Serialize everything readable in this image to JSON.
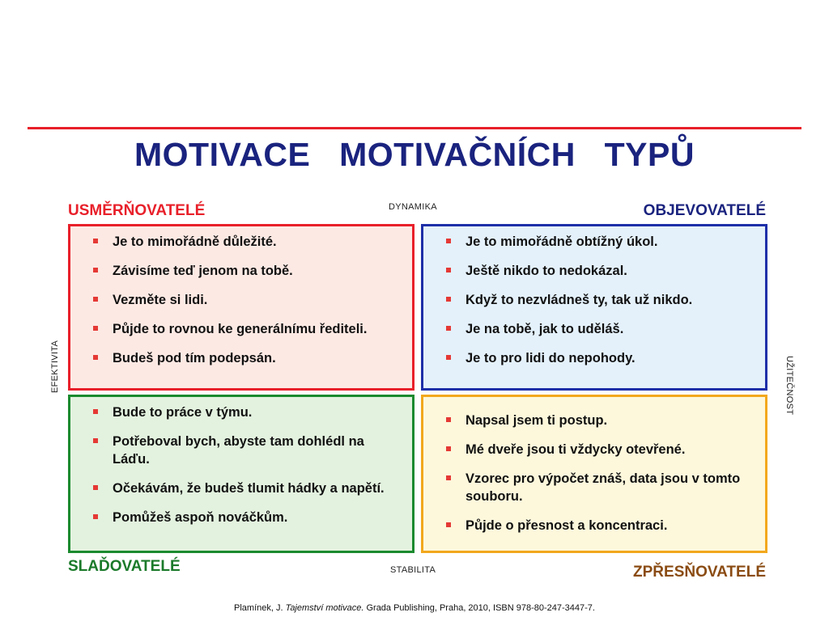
{
  "title": "MOTIVACE  MOTIVAČNÍCH  TYPŮ",
  "axes": {
    "top": "DYNAMIKA",
    "bottom": "STABILITA",
    "left": "EFEKTIVITA",
    "right": "UŽITEČNOST"
  },
  "quadrants": {
    "top_left": {
      "label": "USMĚRŇOVATELÉ",
      "label_color": "#e8202a",
      "border_color": "#e8202a",
      "fill_color": "#fde9e4",
      "items": [
        "Je to mimořádně důležité.",
        "Závisíme teď jenom na tobě.",
        "Vezměte si lidi.",
        "Půjde to rovnou ke generálnímu řediteli.",
        "Budeš pod tím podepsán."
      ]
    },
    "top_right": {
      "label": "OBJEVOVATELÉ",
      "label_color": "#1a237e",
      "border_color": "#1e2fa8",
      "fill_color": "#e4f1fb",
      "items": [
        "Je to mimořádně obtížný úkol.",
        "Ještě nikdo to nedokázal.",
        "Když to nezvládneš ty, tak už nikdo.",
        "Je na tobě, jak to uděláš.",
        "Je to pro lidi do nepohody."
      ]
    },
    "bottom_left": {
      "label": "SLAĎOVATELÉ",
      "label_color": "#1b7a2a",
      "border_color": "#1b8a2e",
      "fill_color": "#e3f2df",
      "items": [
        "Bude to práce v týmu.",
        "Potřeboval bych, abyste tam dohlédl na Láďu.",
        "Očekávám, že budeš tlumit hádky a napětí.",
        "Pomůžeš aspoň nováčkům."
      ]
    },
    "bottom_right": {
      "label": "ZPŘESŇOVATELÉ",
      "label_color": "#8a4b12",
      "border_color": "#f2a81d",
      "fill_color": "#fdf8dc",
      "items": [
        "Napsal jsem ti postup.",
        "Mé dveře jsou ti vždycky otevřené.",
        "Vzorec pro výpočet znáš, data jsou v tomto souboru.",
        "Půjde o přesnost a koncentraci."
      ]
    }
  },
  "citation": {
    "author": "Plamínek, J.",
    "book": "Tajemství motivace.",
    "rest": "Grada Publishing, Praha, 2010, ISBN 978-80-247-3447-7."
  },
  "bullet_color": "#e53935"
}
